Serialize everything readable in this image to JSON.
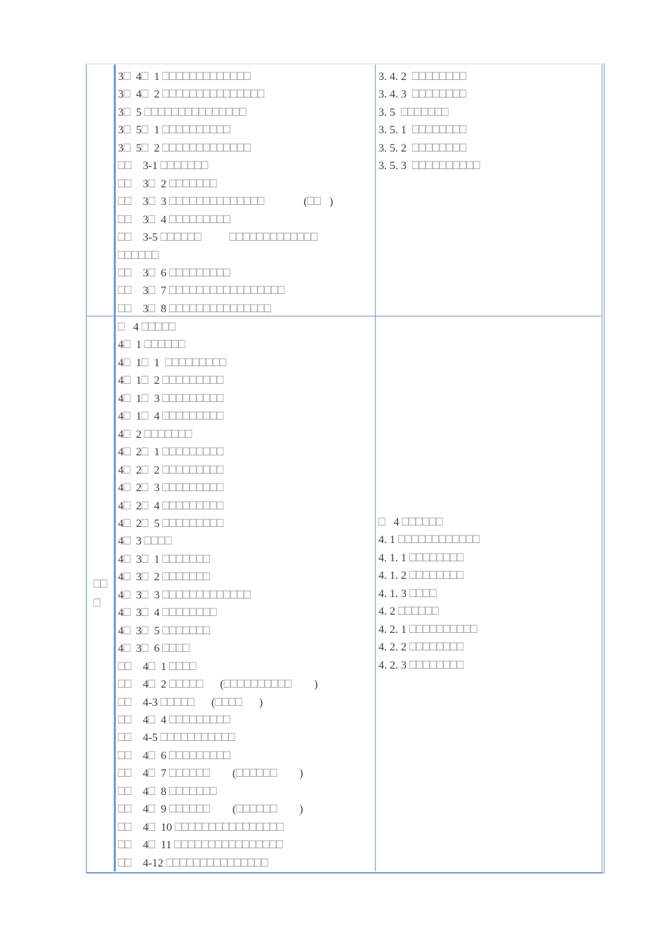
{
  "colors": {
    "table_border_blue": "#789bcd",
    "table_top_gray": "#ececec",
    "text": "#3c3c3c",
    "missing_glyph_box": "#8f8f8f"
  },
  "table": {
    "rows": [
      {
        "label_lines": [],
        "left_lines": [
          "3□  4□  1 □□□□□□□□□□□□□",
          "3□  4□  2 □□□□□□□□□□□□□□□",
          "3□  5 □□□□□□□□□□□□□□□",
          "3□  5□  1 □□□□□□□□□□",
          "3□  5□  2 □□□□□□□□□□□□□",
          "□□    3-1 □□□□□□□",
          "□□    3□  2 □□□□□□□",
          "□□    3□  3 □□□□□□□□□□□□□□              (□□   )",
          "□□    3□  4 □□□□□□□□□",
          "□□    3-5 □□□□□□          □□□□□□□□□□□□□",
          "□□□□□□",
          "□□    3□  6 □□□□□□□□□",
          "□□    3□  7 □□□□□□□□□□□□□□□□□",
          "□□    3□  8 □□□□□□□□□□□□□□□"
        ],
        "right_lines": [
          "3. 4. 2  □□□□□□□□",
          "3. 4. 3  □□□□□□□□",
          "3. 5  □□□□□□□",
          "3. 5. 1  □□□□□□□□",
          "3. 5. 2  □□□□□□□□",
          "3. 5. 3  □□□□□□□□□□"
        ]
      },
      {
        "label_lines": [
          "□□",
          "□"
        ],
        "left_lines": [
          "□   4 □□□□□",
          "4□  1 □□□□□□",
          "4□  1□  1  □□□□□□□□□",
          "4□  1□  2 □□□□□□□□□",
          "4□  1□  3 □□□□□□□□□",
          "4□  1□  4 □□□□□□□□□",
          "4□  2 □□□□□□□",
          "4□  2□  1 □□□□□□□□□",
          "4□  2□  2 □□□□□□□□□",
          "4□  2□  3 □□□□□□□□□",
          "4□  2□  4 □□□□□□□□□",
          "4□  2□  5 □□□□□□□□□",
          "4□  3 □□□□",
          "4□  3□  1 □□□□□□□",
          "4□  3□  2 □□□□□□□",
          "4□  3□  3 □□□□□□□□□□□□□",
          "4□  3□  4 □□□□□□□□",
          "4□  3□  5 □□□□□□□",
          "4□  3□  6 □□□□",
          "□□    4□  1 □□□□",
          "□□    4□  2 □□□□□      (□□□□□□□□□□        )",
          "□□    4-3 □□□□□      (□□□□      )",
          "□□    4□  4 □□□□□□□□□",
          "□□    4-5 □□□□□□□□□□□",
          "□□    4□  6 □□□□□□□□□",
          "□□    4□  7 □□□□□□        (□□□□□□        )",
          "□□    4□  8 □□□□□□□",
          "□□    4□  9 □□□□□□        (□□□□□□        )",
          "□□    4□  10 □□□□□□□□□□□□□□□□",
          "□□    4□  11 □□□□□□□□□□□□□□□□",
          "□□    4-12 □□□□□□□□□□□□□□□"
        ],
        "right_lines": [
          "□   4 □□□□□□",
          "4. 1 □□□□□□□□□□□□",
          "4. 1. 1 □□□□□□□□",
          "4. 1. 2 □□□□□□□□",
          "4. 1. 3 □□□□",
          "4. 2 □□□□□□",
          "4. 2. 1 □□□□□□□□□□",
          "4. 2. 2 □□□□□□□□",
          "4. 2. 3 □□□□□□□□"
        ]
      }
    ]
  }
}
